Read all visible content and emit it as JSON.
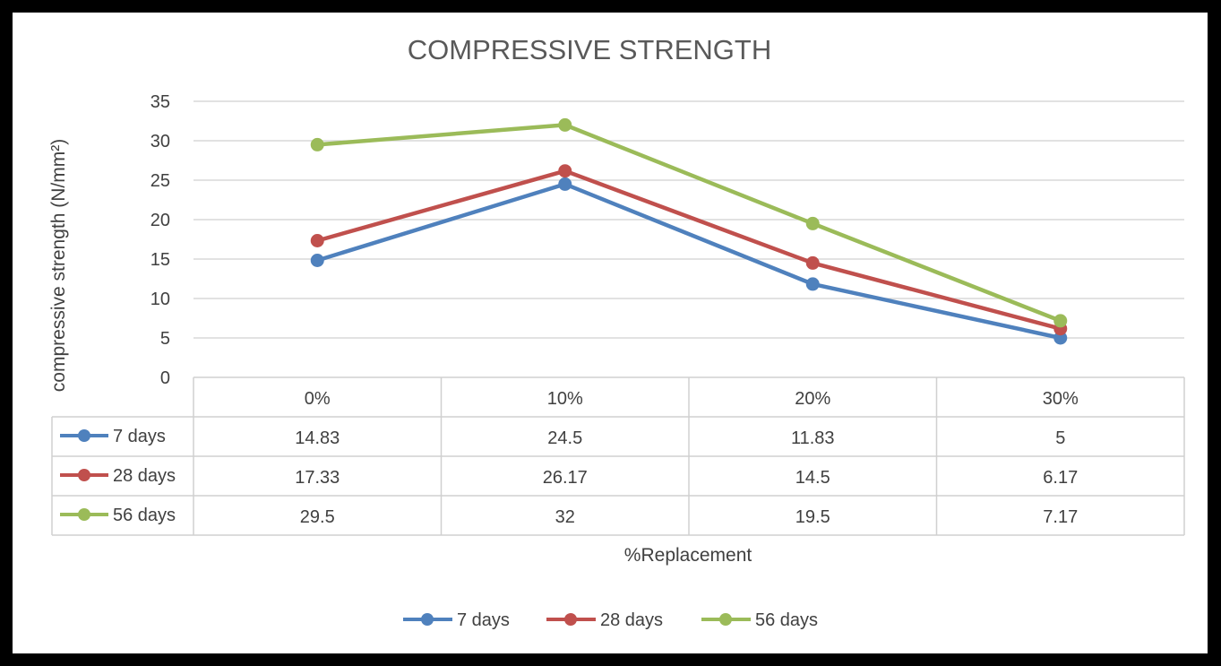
{
  "chart_data": {
    "type": "line",
    "title": "COMPRESSIVE STRENGTH",
    "xlabel": "%Replacement",
    "ylabel": "compressive strength (N/mm²)",
    "ylim": [
      0,
      35
    ],
    "yticks": [
      0,
      5,
      10,
      15,
      20,
      25,
      30,
      35
    ],
    "categories": [
      "0%",
      "10%",
      "20%",
      "30%"
    ],
    "grid": true,
    "legend_position": "bottom",
    "data_table": true,
    "series": [
      {
        "name": "7 days",
        "values": [
          14.83,
          24.5,
          11.83,
          5
        ],
        "labels": [
          "14.83",
          "24.5",
          "11.83",
          "5"
        ],
        "color": "#4F81BD"
      },
      {
        "name": "28 days",
        "values": [
          17.33,
          26.17,
          14.5,
          6.17
        ],
        "labels": [
          "17.33",
          "26.17",
          "14.5",
          "6.17"
        ],
        "color": "#C0504D"
      },
      {
        "name": "56 days",
        "values": [
          29.5,
          32,
          19.5,
          7.17
        ],
        "labels": [
          "29.5",
          "32",
          "19.5",
          "7.17"
        ],
        "color": "#9BBB59"
      }
    ]
  }
}
